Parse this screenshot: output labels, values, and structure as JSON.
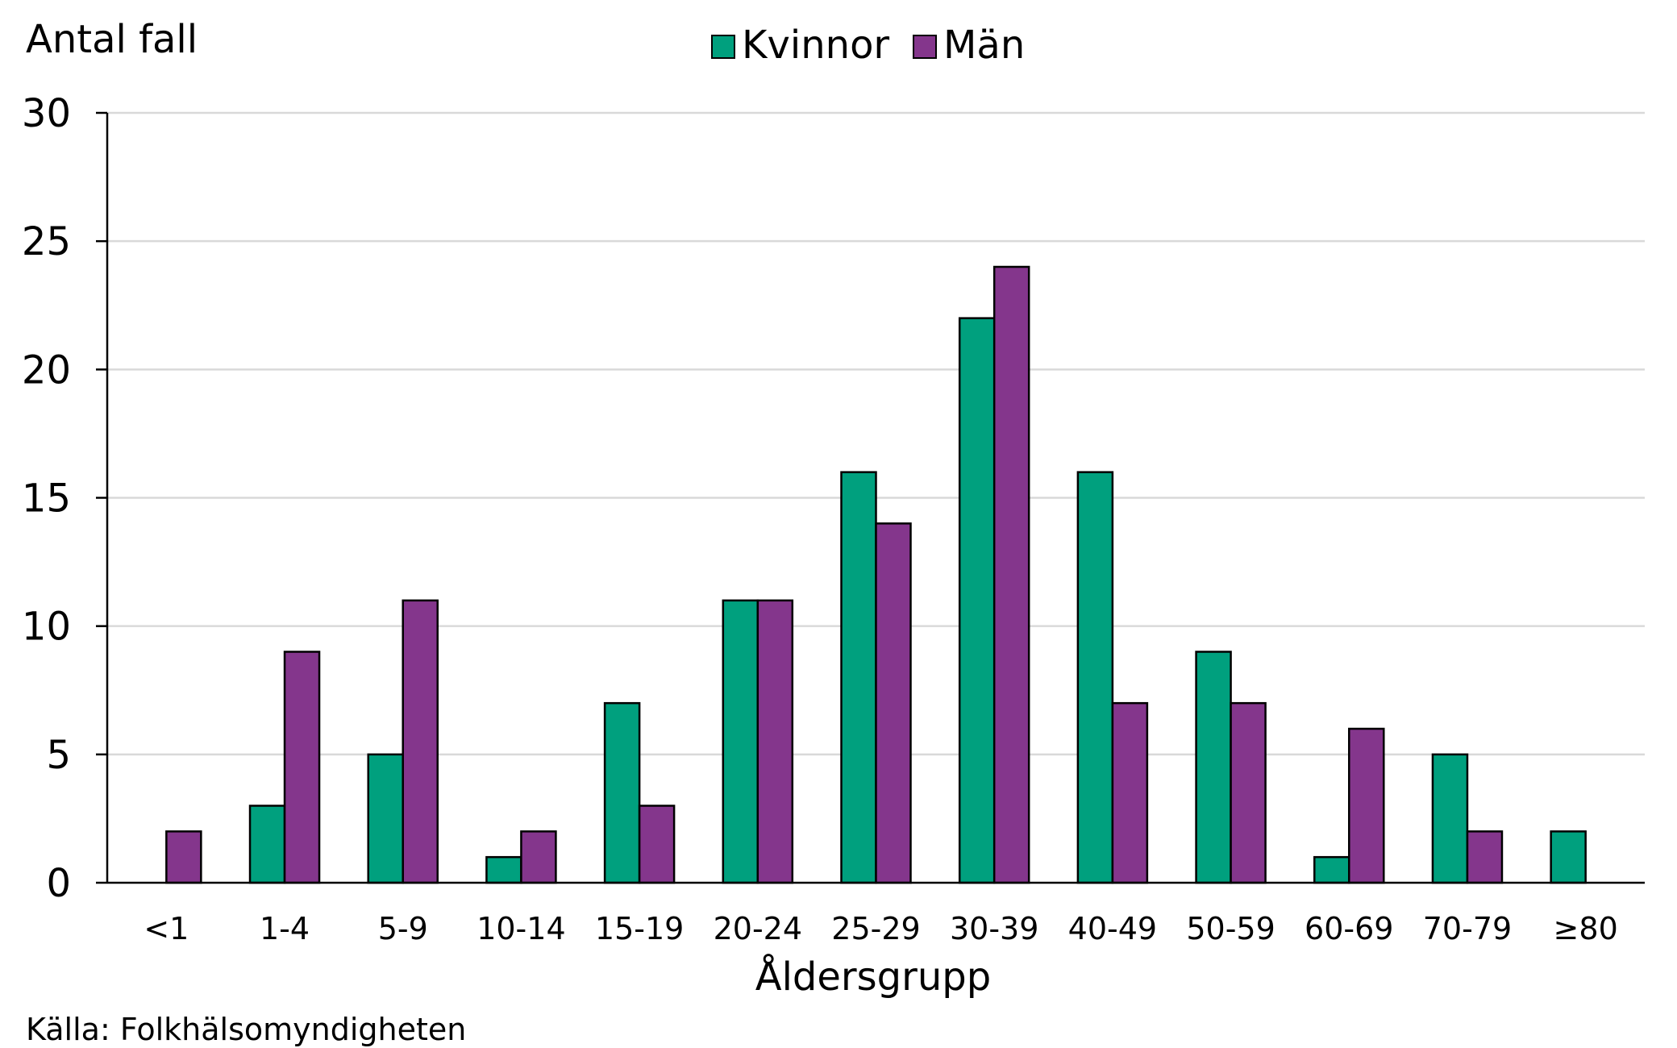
{
  "chart_data": {
    "type": "bar",
    "ylabel": "Antal fall",
    "xlabel": "Åldersgrupp",
    "ylim": [
      0,
      30
    ],
    "yticks": [
      0,
      5,
      10,
      15,
      20,
      25,
      30
    ],
    "grid": true,
    "legend_position": "top-center",
    "categories": [
      "<1",
      "1-4",
      "5-9",
      "10-14",
      "15-19",
      "20-24",
      "25-29",
      "30-39",
      "40-49",
      "50-59",
      "60-69",
      "70-79",
      "≥80"
    ],
    "series": [
      {
        "name": "Kvinnor",
        "color": "#00A07E",
        "values": [
          0,
          3,
          5,
          1,
          7,
          11,
          16,
          22,
          16,
          9,
          1,
          5,
          2
        ]
      },
      {
        "name": "Män",
        "color": "#84368C",
        "values": [
          2,
          9,
          11,
          2,
          3,
          11,
          14,
          24,
          7,
          7,
          6,
          2,
          0
        ]
      }
    ]
  },
  "source": "Källa: Folkhälsomyndigheten"
}
